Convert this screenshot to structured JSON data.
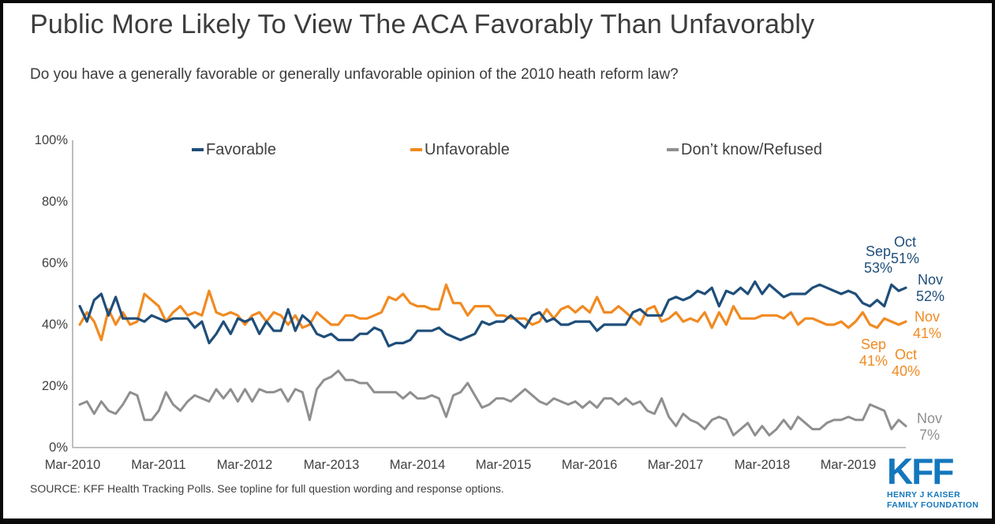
{
  "header": {
    "title": "Public More Likely To View The ACA Favorably Than Unfavorably",
    "subtitle": "Do you have a generally favorable or generally unfavorable opinion of the 2010 heath reform law?"
  },
  "colors": {
    "favorable": "#1F4E79",
    "unfavorable": "#F18A21",
    "dont_know": "#8F8F8F",
    "logo_blue": "#1377BD",
    "axis": "#9B9B9B",
    "text": "#404040",
    "border": "#0A0A0A",
    "background": "#FFFFFF"
  },
  "chart_data": {
    "type": "line",
    "title": "Public More Likely To View The ACA Favorably Than Unfavorably",
    "subtitle": "Do you have a generally favorable or generally unfavorable opinion of the 2010 heath reform law?",
    "xlabel": "",
    "ylabel": "",
    "ylim": [
      0,
      100
    ],
    "grid": false,
    "legend_position": "top",
    "x_unit": "month",
    "x_first": "Apr-2010",
    "x_last": "Nov-2019",
    "x_tick_labels": [
      "Mar-2010",
      "Mar-2011",
      "Mar-2012",
      "Mar-2013",
      "Mar-2014",
      "Mar-2015",
      "Mar-2016",
      "Mar-2017",
      "Mar-2018",
      "Mar-2019"
    ],
    "y_tick_labels": [
      "100%",
      "80%",
      "60%",
      "40%",
      "20%",
      "0%"
    ],
    "series": [
      {
        "name": "Favorable",
        "color": "#1F4E79",
        "values": [
          46,
          41,
          48,
          50,
          43,
          49,
          42,
          42,
          42,
          41,
          43,
          42,
          41,
          42,
          42,
          42,
          39,
          41,
          34,
          37,
          41,
          37,
          42,
          41,
          42,
          37,
          41,
          38,
          38,
          45,
          38,
          43,
          41,
          37,
          36,
          37,
          35,
          35,
          35,
          37,
          37,
          39,
          38,
          33,
          34,
          34,
          35,
          38,
          38,
          38,
          39,
          37,
          36,
          35,
          36,
          37,
          41,
          40,
          41,
          41,
          43,
          41,
          39,
          43,
          44,
          41,
          42,
          40,
          40,
          41,
          41,
          41,
          38,
          40,
          40,
          40,
          40,
          44,
          45,
          43,
          43,
          43,
          48,
          49,
          48,
          49,
          51,
          50,
          52,
          46,
          51,
          50,
          52,
          50,
          54,
          50,
          53,
          51,
          49,
          50,
          50,
          50,
          52,
          53,
          52,
          51,
          50,
          51,
          50,
          47,
          46,
          48,
          46,
          53,
          51,
          52
        ]
      },
      {
        "name": "Unfavorable",
        "color": "#F18A21",
        "values": [
          40,
          44,
          41,
          35,
          45,
          40,
          44,
          40,
          41,
          50,
          48,
          46,
          41,
          44,
          46,
          43,
          44,
          43,
          51,
          44,
          43,
          44,
          43,
          40,
          43,
          44,
          41,
          44,
          43,
          40,
          43,
          39,
          40,
          44,
          42,
          40,
          40,
          43,
          43,
          42,
          42,
          43,
          44,
          49,
          48,
          50,
          47,
          46,
          46,
          45,
          45,
          53,
          47,
          47,
          43,
          46,
          46,
          46,
          43,
          43,
          42,
          42,
          42,
          40,
          41,
          45,
          42,
          45,
          46,
          44,
          46,
          44,
          49,
          44,
          44,
          46,
          44,
          42,
          40,
          45,
          46,
          41,
          42,
          44,
          41,
          42,
          41,
          44,
          39,
          44,
          40,
          46,
          42,
          42,
          42,
          43,
          43,
          43,
          42,
          44,
          40,
          42,
          42,
          41,
          40,
          40,
          41,
          39,
          41,
          44,
          40,
          39,
          42,
          41,
          40,
          41
        ]
      },
      {
        "name": "Don’t know/Refused",
        "color": "#8F8F8F",
        "values": [
          14,
          15,
          11,
          15,
          12,
          11,
          14,
          18,
          17,
          9,
          9,
          12,
          18,
          14,
          12,
          15,
          17,
          16,
          15,
          19,
          16,
          19,
          15,
          19,
          15,
          19,
          18,
          18,
          19,
          15,
          19,
          18,
          9,
          19,
          22,
          23,
          25,
          22,
          22,
          21,
          21,
          18,
          18,
          18,
          18,
          16,
          18,
          16,
          16,
          17,
          16,
          10,
          17,
          18,
          21,
          17,
          13,
          14,
          16,
          16,
          15,
          17,
          19,
          17,
          15,
          14,
          16,
          15,
          14,
          15,
          13,
          15,
          13,
          16,
          16,
          14,
          16,
          14,
          15,
          12,
          11,
          16,
          10,
          7,
          11,
          9,
          8,
          6,
          9,
          10,
          9,
          4,
          6,
          8,
          4,
          7,
          4,
          6,
          9,
          6,
          10,
          8,
          6,
          6,
          8,
          9,
          9,
          10,
          9,
          9,
          14,
          13,
          12,
          6,
          9,
          7
        ]
      }
    ],
    "annotations": [
      {
        "series": "Favorable",
        "line1": "Sep",
        "line2": "53%"
      },
      {
        "series": "Favorable",
        "line1": "Oct",
        "line2": "51%"
      },
      {
        "series": "Favorable",
        "line1": "Nov",
        "line2": "52%"
      },
      {
        "series": "Unfavorable",
        "line1": "Nov",
        "line2": "41%"
      },
      {
        "series": "Unfavorable",
        "line1": "Sep",
        "line2": "41%"
      },
      {
        "series": "Unfavorable",
        "line1": "Oct",
        "line2": "40%"
      },
      {
        "series": "Don't know/Refused",
        "line1": "Nov",
        "line2": "7%"
      }
    ]
  },
  "footer": {
    "source": "SOURCE: KFF Health Tracking Polls. See topline for full question wording and response options.",
    "logo": {
      "text": "KFF",
      "line1": "HENRY J KAISER",
      "line2": "FAMILY FOUNDATION"
    }
  }
}
